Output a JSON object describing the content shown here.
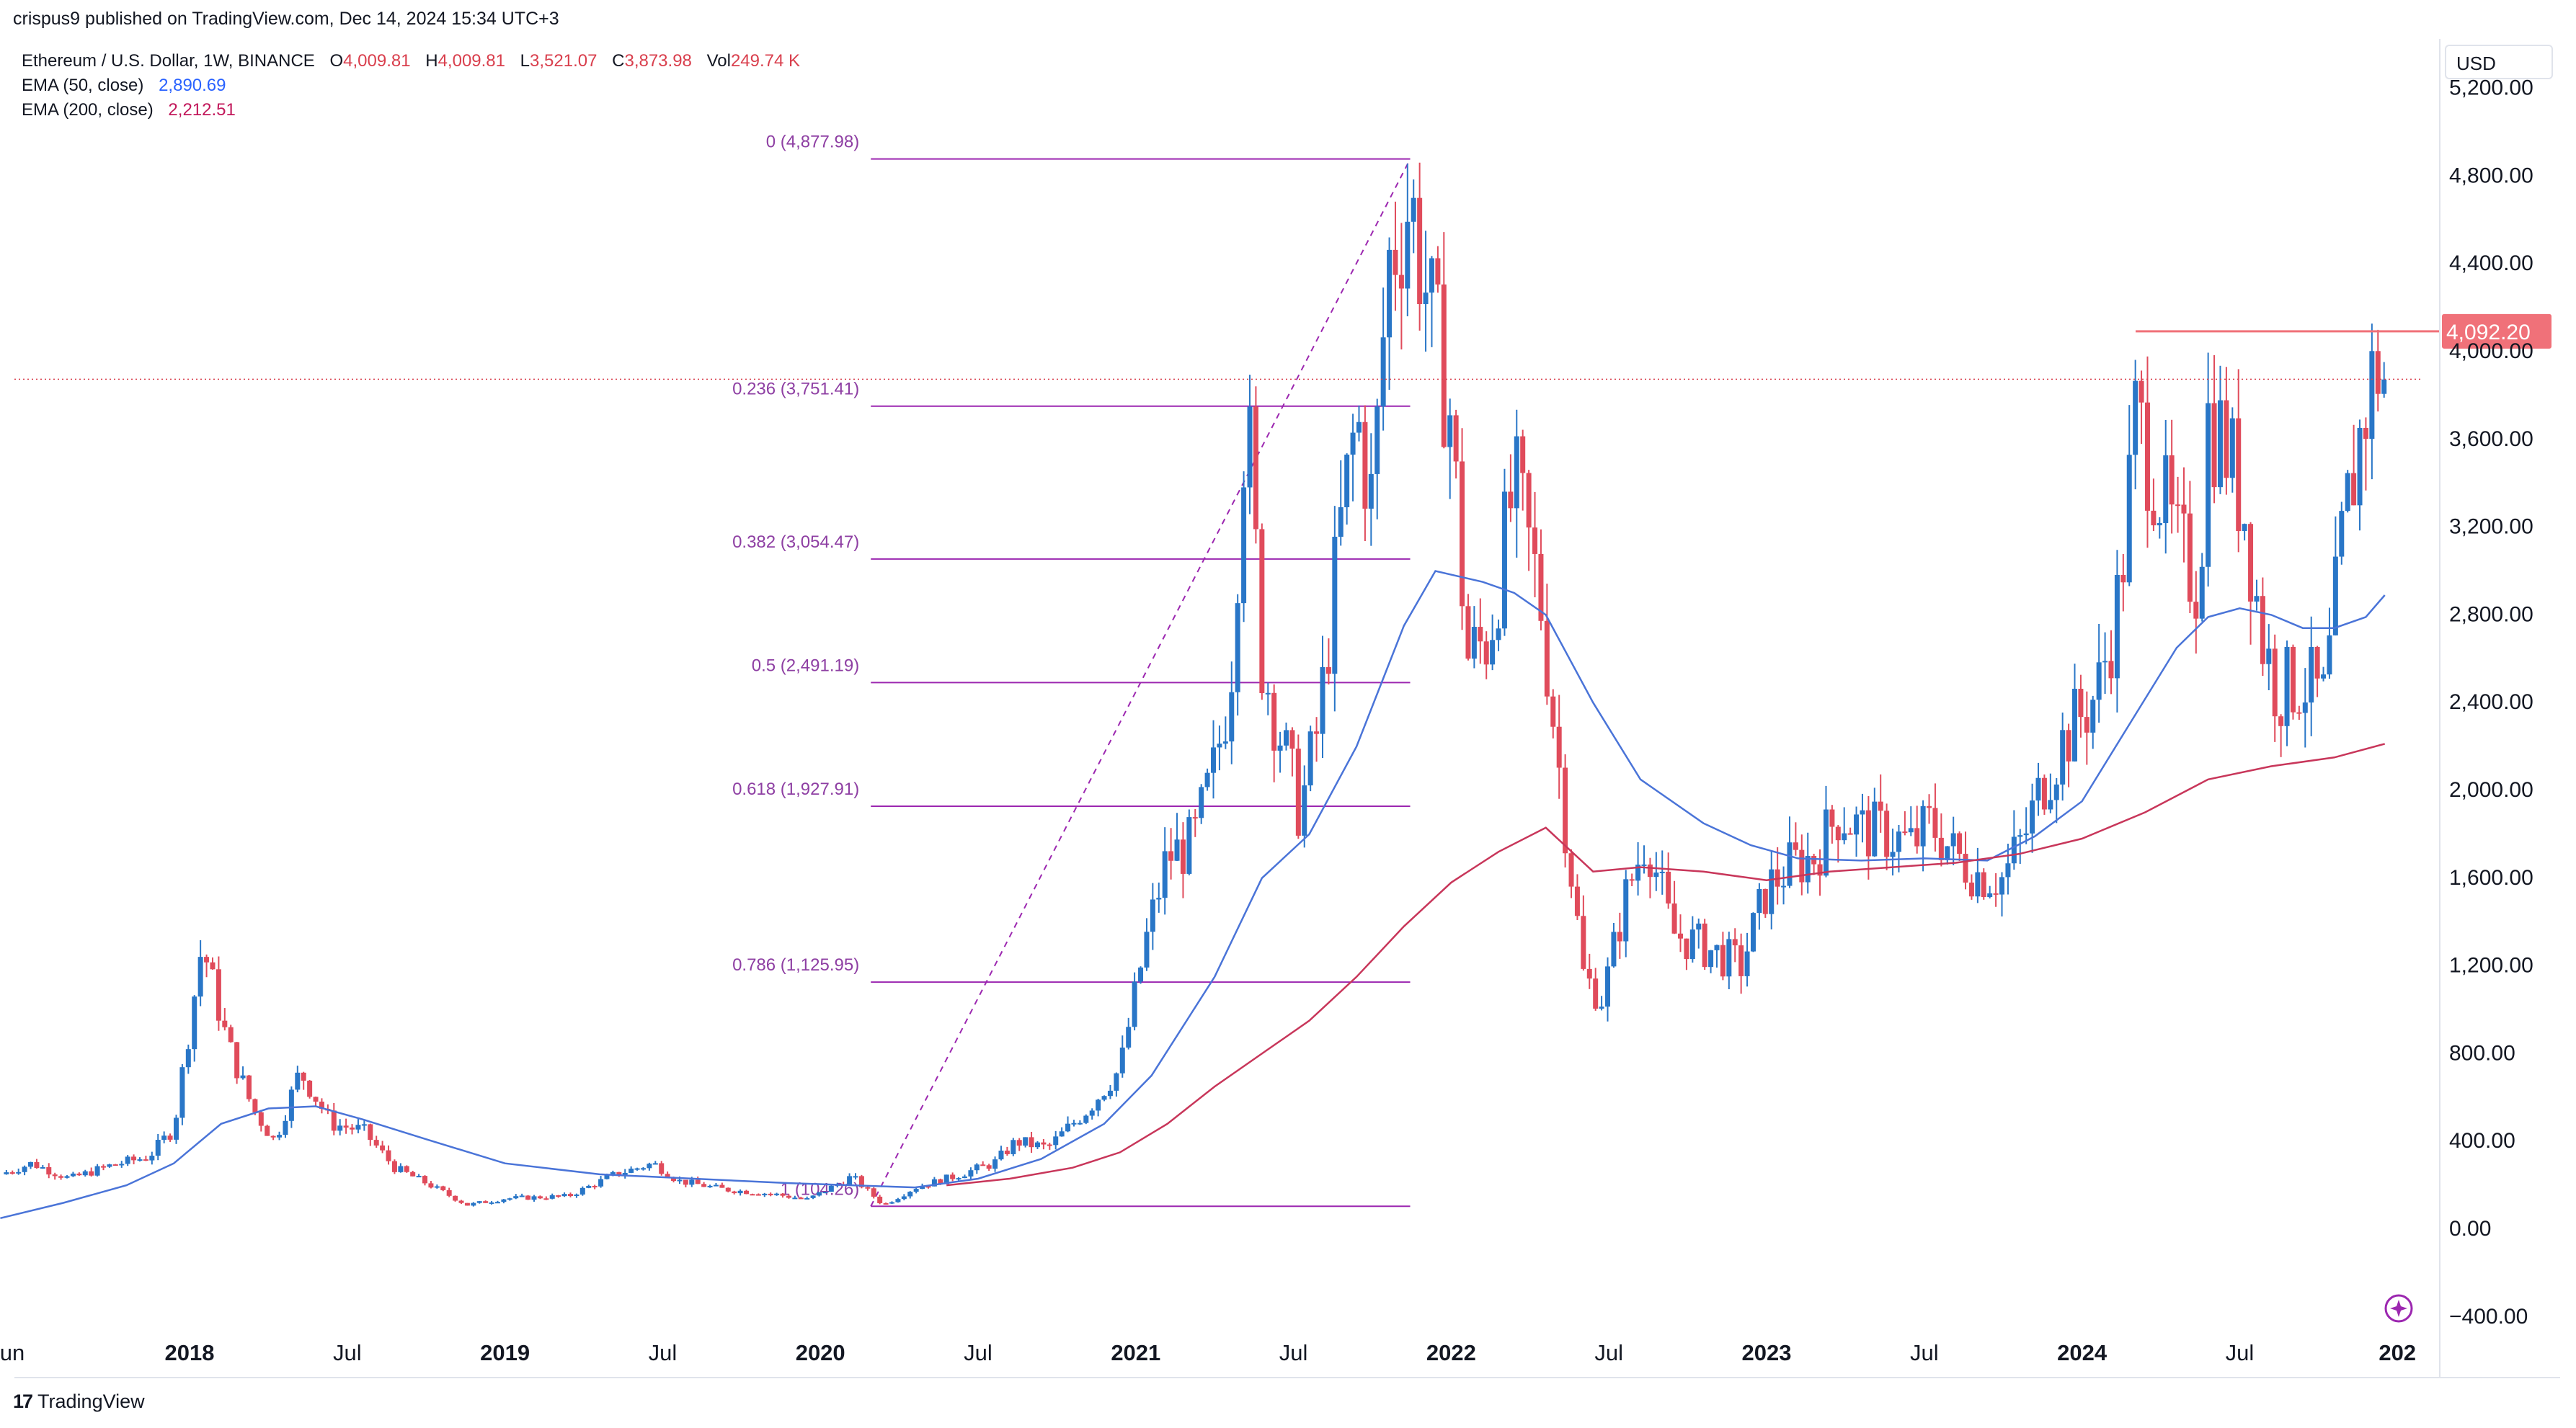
{
  "header": {
    "published_by": "crispus9 published on TradingView.com, Dec 14, 2024 15:34 UTC+3"
  },
  "legend": {
    "symbol": "Ethereum / U.S. Dollar, 1W, BINANCE",
    "ohlc": [
      {
        "k": "O",
        "v": "4,009.81"
      },
      {
        "k": "H",
        "v": "4,009.81"
      },
      {
        "k": "L",
        "v": "3,521.07"
      },
      {
        "k": "C",
        "v": "3,873.98"
      },
      {
        "k": "Vol",
        "v": "249.74 K"
      }
    ],
    "ema50": {
      "label": "EMA (50, close)",
      "value": "2,890.69",
      "color": "#2962ff"
    },
    "ema200": {
      "label": "EMA (200, close)",
      "value": "2,212.51",
      "color": "#c2185b"
    }
  },
  "currency": "USD",
  "footer": {
    "brand": "TradingView"
  },
  "colors": {
    "up": "#2976c7",
    "down": "#e04b5b",
    "fib": "#9c27b0",
    "ema50": "#4a74d8",
    "ema200": "#c8365a",
    "price_tag": "#f07179"
  },
  "chart_data": {
    "type": "candlestick",
    "title": "Ethereum / U.S. Dollar, 1W, BINANCE",
    "x_range": [
      2017.4,
      2025.0
    ],
    "ylim": [
      -400,
      5200
    ],
    "y_ticks": [
      -400,
      0,
      400,
      800,
      1200,
      1600,
      2000,
      2400,
      2800,
      3200,
      3600,
      4000,
      4400,
      4800,
      5200
    ],
    "y_tick_labels": [
      "−400.00",
      "0.00",
      "400.00",
      "800.00",
      "1,200.00",
      "1,600.00",
      "2,000.00",
      "2,400.00",
      "2,800.00",
      "3,200.00",
      "3,600.00",
      "4,000.00",
      "4,400.00",
      "4,800.00",
      "5,200.00"
    ],
    "x_ticks": [
      {
        "t": 2017.42,
        "label": "Jun",
        "bold": false
      },
      {
        "t": 2018.0,
        "label": "2018",
        "bold": true
      },
      {
        "t": 2018.5,
        "label": "Jul",
        "bold": false
      },
      {
        "t": 2019.0,
        "label": "2019",
        "bold": true
      },
      {
        "t": 2019.5,
        "label": "Jul",
        "bold": false
      },
      {
        "t": 2020.0,
        "label": "2020",
        "bold": true
      },
      {
        "t": 2020.5,
        "label": "Jul",
        "bold": false
      },
      {
        "t": 2021.0,
        "label": "2021",
        "bold": true
      },
      {
        "t": 2021.5,
        "label": "Jul",
        "bold": false
      },
      {
        "t": 2022.0,
        "label": "2022",
        "bold": true
      },
      {
        "t": 2022.5,
        "label": "Jul",
        "bold": false
      },
      {
        "t": 2023.0,
        "label": "2023",
        "bold": true
      },
      {
        "t": 2023.5,
        "label": "Jul",
        "bold": false
      },
      {
        "t": 2024.0,
        "label": "2024",
        "bold": true
      },
      {
        "t": 2024.5,
        "label": "Jul",
        "bold": false
      },
      {
        "t": 2025.0,
        "label": "202",
        "bold": true
      }
    ],
    "price_anchors": [
      [
        2017.4,
        250
      ],
      [
        2017.5,
        300
      ],
      [
        2017.62,
        230
      ],
      [
        2017.75,
        290
      ],
      [
        2017.87,
        330
      ],
      [
        2017.95,
        460
      ],
      [
        2018.04,
        1300
      ],
      [
        2018.12,
        850
      ],
      [
        2018.2,
        550
      ],
      [
        2018.27,
        400
      ],
      [
        2018.35,
        720
      ],
      [
        2018.45,
        480
      ],
      [
        2018.55,
        450
      ],
      [
        2018.65,
        280
      ],
      [
        2018.75,
        210
      ],
      [
        2018.88,
        110
      ],
      [
        2019.0,
        140
      ],
      [
        2019.2,
        150
      ],
      [
        2019.35,
        250
      ],
      [
        2019.47,
        300
      ],
      [
        2019.55,
        220
      ],
      [
        2019.7,
        180
      ],
      [
        2019.85,
        160
      ],
      [
        2019.96,
        135
      ],
      [
        2020.1,
        240
      ],
      [
        2020.2,
        110
      ],
      [
        2020.3,
        190
      ],
      [
        2020.4,
        230
      ],
      [
        2020.55,
        300
      ],
      [
        2020.62,
        400
      ],
      [
        2020.72,
        370
      ],
      [
        2020.85,
        550
      ],
      [
        2020.95,
        730
      ],
      [
        2021.03,
        1300
      ],
      [
        2021.1,
        1700
      ],
      [
        2021.18,
        1750
      ],
      [
        2021.25,
        2100
      ],
      [
        2021.3,
        2500
      ],
      [
        2021.35,
        3800
      ],
      [
        2021.4,
        2600
      ],
      [
        2021.45,
        2300
      ],
      [
        2021.52,
        1900
      ],
      [
        2021.58,
        2300
      ],
      [
        2021.65,
        3200
      ],
      [
        2021.7,
        3700
      ],
      [
        2021.75,
        3300
      ],
      [
        2021.8,
        4400
      ],
      [
        2021.87,
        4700
      ],
      [
        2021.93,
        4200
      ],
      [
        2022.0,
        3700
      ],
      [
        2022.05,
        2600
      ],
      [
        2022.12,
        2700
      ],
      [
        2022.2,
        3400
      ],
      [
        2022.28,
        2900
      ],
      [
        2022.35,
        2000
      ],
      [
        2022.42,
        1150
      ],
      [
        2022.48,
        1050
      ],
      [
        2022.55,
        1500
      ],
      [
        2022.62,
        1800
      ],
      [
        2022.7,
        1350
      ],
      [
        2022.78,
        1300
      ],
      [
        2022.85,
        1250
      ],
      [
        2022.92,
        1200
      ],
      [
        2023.0,
        1550
      ],
      [
        2023.07,
        1650
      ],
      [
        2023.15,
        1700
      ],
      [
        2023.23,
        1900
      ],
      [
        2023.3,
        1820
      ],
      [
        2023.38,
        1800
      ],
      [
        2023.46,
        1750
      ],
      [
        2023.52,
        1850
      ],
      [
        2023.6,
        1700
      ],
      [
        2023.67,
        1620
      ],
      [
        2023.75,
        1600
      ],
      [
        2023.82,
        1800
      ],
      [
        2023.88,
        2050
      ],
      [
        2023.95,
        2250
      ],
      [
        2024.05,
        2450
      ],
      [
        2024.12,
        2900
      ],
      [
        2024.17,
        3700
      ],
      [
        2024.22,
        3500
      ],
      [
        2024.3,
        3100
      ],
      [
        2024.37,
        2950
      ],
      [
        2024.4,
        3700
      ],
      [
        2024.45,
        3600
      ],
      [
        2024.52,
        3250
      ],
      [
        2024.57,
        2700
      ],
      [
        2024.62,
        2450
      ],
      [
        2024.7,
        2500
      ],
      [
        2024.77,
        2400
      ],
      [
        2024.83,
        3200
      ],
      [
        2024.88,
        3600
      ],
      [
        2024.93,
        3950
      ],
      [
        2024.96,
        3874
      ]
    ],
    "ema50_points": [
      [
        2017.4,
        50
      ],
      [
        2017.6,
        120
      ],
      [
        2017.8,
        200
      ],
      [
        2017.95,
        300
      ],
      [
        2018.1,
        480
      ],
      [
        2018.25,
        550
      ],
      [
        2018.4,
        560
      ],
      [
        2018.55,
        500
      ],
      [
        2018.75,
        410
      ],
      [
        2019.0,
        300
      ],
      [
        2019.3,
        250
      ],
      [
        2019.6,
        230
      ],
      [
        2019.9,
        210
      ],
      [
        2020.1,
        200
      ],
      [
        2020.3,
        190
      ],
      [
        2020.5,
        230
      ],
      [
        2020.7,
        320
      ],
      [
        2020.9,
        480
      ],
      [
        2021.05,
        700
      ],
      [
        2021.25,
        1150
      ],
      [
        2021.4,
        1600
      ],
      [
        2021.55,
        1800
      ],
      [
        2021.7,
        2200
      ],
      [
        2021.85,
        2750
      ],
      [
        2021.95,
        3000
      ],
      [
        2022.1,
        2950
      ],
      [
        2022.2,
        2900
      ],
      [
        2022.3,
        2800
      ],
      [
        2022.45,
        2400
      ],
      [
        2022.6,
        2050
      ],
      [
        2022.8,
        1850
      ],
      [
        2022.95,
        1750
      ],
      [
        2023.1,
        1690
      ],
      [
        2023.3,
        1680
      ],
      [
        2023.5,
        1690
      ],
      [
        2023.7,
        1680
      ],
      [
        2023.85,
        1790
      ],
      [
        2024.0,
        1950
      ],
      [
        2024.15,
        2300
      ],
      [
        2024.3,
        2650
      ],
      [
        2024.4,
        2790
      ],
      [
        2024.5,
        2830
      ],
      [
        2024.6,
        2800
      ],
      [
        2024.7,
        2740
      ],
      [
        2024.8,
        2740
      ],
      [
        2024.9,
        2790
      ],
      [
        2024.96,
        2890
      ]
    ],
    "ema200_points": [
      [
        2020.4,
        200
      ],
      [
        2020.6,
        230
      ],
      [
        2020.8,
        280
      ],
      [
        2020.95,
        350
      ],
      [
        2021.1,
        480
      ],
      [
        2021.25,
        650
      ],
      [
        2021.4,
        800
      ],
      [
        2021.55,
        950
      ],
      [
        2021.7,
        1150
      ],
      [
        2021.85,
        1380
      ],
      [
        2022.0,
        1580
      ],
      [
        2022.15,
        1720
      ],
      [
        2022.3,
        1830
      ],
      [
        2022.45,
        1630
      ],
      [
        2022.6,
        1650
      ],
      [
        2022.8,
        1630
      ],
      [
        2023.0,
        1590
      ],
      [
        2023.2,
        1630
      ],
      [
        2023.4,
        1650
      ],
      [
        2023.6,
        1670
      ],
      [
        2023.8,
        1710
      ],
      [
        2024.0,
        1780
      ],
      [
        2024.2,
        1900
      ],
      [
        2024.4,
        2050
      ],
      [
        2024.6,
        2110
      ],
      [
        2024.8,
        2150
      ],
      [
        2024.96,
        2212
      ]
    ],
    "fib_levels": [
      {
        "ratio": "0",
        "value": 4877.98,
        "label": "0 (4,877.98)"
      },
      {
        "ratio": "0.236",
        "value": 3751.41,
        "label": "0.236 (3,751.41)"
      },
      {
        "ratio": "0.382",
        "value": 3054.47,
        "label": "0.382 (3,054.47)"
      },
      {
        "ratio": "0.5",
        "value": 2491.19,
        "label": "0.5 (2,491.19)"
      },
      {
        "ratio": "0.618",
        "value": 1927.91,
        "label": "0.618 (1,927.91)"
      },
      {
        "ratio": "0.786",
        "value": 1125.95,
        "label": "0.786 (1,125.95)"
      },
      {
        "ratio": "1",
        "value": 104.26,
        "label": "1 (104.26)"
      }
    ],
    "fib_x_range": [
      2020.16,
      2021.87
    ],
    "resistance": {
      "value": 4092.2,
      "label": "4,092.20",
      "x_range": [
        2024.17,
        2024.96
      ]
    },
    "current_price": 3873.98
  }
}
